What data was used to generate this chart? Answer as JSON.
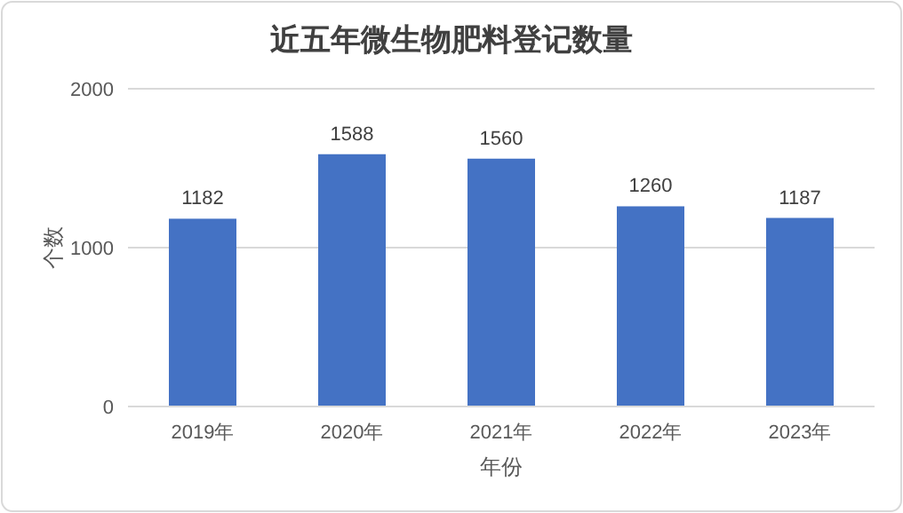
{
  "chart_data": {
    "type": "bar",
    "title": "近五年微生物肥料登记数量",
    "xlabel": "年份",
    "ylabel": "个数",
    "categories": [
      "2019年",
      "2020年",
      "2021年",
      "2022年",
      "2023年"
    ],
    "values": [
      1182,
      1588,
      1560,
      1260,
      1187
    ],
    "color": "#4472c4",
    "ylim": [
      0,
      2000
    ],
    "yticks": [
      0,
      1000,
      2000
    ],
    "grid": "y",
    "data_labels": true
  }
}
